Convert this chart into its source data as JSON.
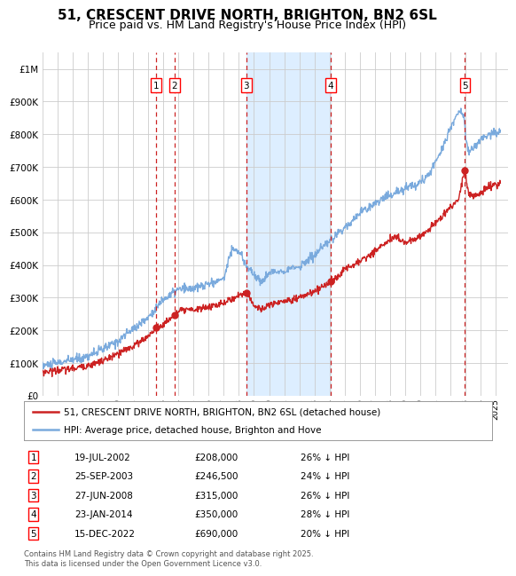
{
  "title": "51, CRESCENT DRIVE NORTH, BRIGHTON, BN2 6SL",
  "subtitle": "Price paid vs. HM Land Registry's House Price Index (HPI)",
  "title_fontsize": 11,
  "subtitle_fontsize": 9,
  "ylabel_ticks": [
    "£0",
    "£100K",
    "£200K",
    "£300K",
    "£400K",
    "£500K",
    "£600K",
    "£700K",
    "£800K",
    "£900K",
    "£1M"
  ],
  "ytick_vals": [
    0,
    100000,
    200000,
    300000,
    400000,
    500000,
    600000,
    700000,
    800000,
    900000,
    1000000
  ],
  "ylim": [
    0,
    1050000
  ],
  "xlim_start": 1995.0,
  "xlim_end": 2025.8,
  "hpi_color": "#7aaadd",
  "hpi_fill_color": "#ddeeff",
  "price_color": "#cc2222",
  "grid_color": "#cccccc",
  "background_color": "#ffffff",
  "transactions": [
    {
      "num": 1,
      "date_num": 2002.54,
      "price": 208000
    },
    {
      "num": 2,
      "date_num": 2003.73,
      "price": 246500
    },
    {
      "num": 3,
      "date_num": 2008.49,
      "price": 315000
    },
    {
      "num": 4,
      "date_num": 2014.06,
      "price": 350000
    },
    {
      "num": 5,
      "date_num": 2022.96,
      "price": 690000
    }
  ],
  "legend_line1": "51, CRESCENT DRIVE NORTH, BRIGHTON, BN2 6SL (detached house)",
  "legend_line2": "HPI: Average price, detached house, Brighton and Hove",
  "footnote": "Contains HM Land Registry data © Crown copyright and database right 2025.\nThis data is licensed under the Open Government Licence v3.0.",
  "table_rows": [
    [
      "1",
      "19-JUL-2002",
      "£208,000",
      "26% ↓ HPI"
    ],
    [
      "2",
      "25-SEP-2003",
      "£246,500",
      "24% ↓ HPI"
    ],
    [
      "3",
      "27-JUN-2008",
      "£315,000",
      "26% ↓ HPI"
    ],
    [
      "4",
      "23-JAN-2014",
      "£350,000",
      "28% ↓ HPI"
    ],
    [
      "5",
      "15-DEC-2022",
      "£690,000",
      "20% ↓ HPI"
    ]
  ],
  "xtick_years": [
    1995,
    1996,
    1997,
    1998,
    1999,
    2000,
    2001,
    2002,
    2003,
    2004,
    2005,
    2006,
    2007,
    2008,
    2009,
    2010,
    2011,
    2012,
    2013,
    2014,
    2015,
    2016,
    2017,
    2018,
    2019,
    2020,
    2021,
    2022,
    2023,
    2024,
    2025
  ]
}
